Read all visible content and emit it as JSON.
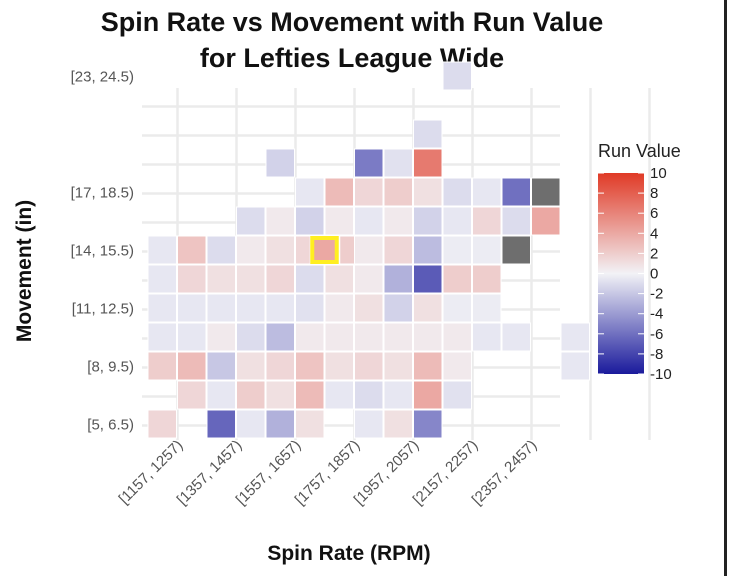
{
  "chart_data": {
    "type": "heatmap",
    "title_lines": [
      "Spin Rate vs Movement with Run Value",
      "for Lefties League Wide"
    ],
    "xlabel": "Spin Rate (RPM)",
    "ylabel": "Movement (in)",
    "x_tick_labels": [
      "[1157, 1257)",
      "[1357, 1457)",
      "[1557, 1657)",
      "[1757, 1857)",
      "[1957, 2057)",
      "[2157, 2257)",
      "[2357, 2457)"
    ],
    "y_tick_labels": [
      "[5, 6.5)",
      "[8, 9.5)",
      "[11, 12.5)",
      "[14, 15.5)",
      "[17, 18.5)",
      "[23, 24.5)"
    ],
    "x_bins": [
      "[1107, 1207)",
      "[1157, 1257)",
      "[1207, 1307)",
      "[1257, 1357)",
      "[1307, 1407)",
      "[1357, 1457)",
      "[1407, 1507)",
      "[1457, 1557)",
      "[1507, 1607)",
      "[1557, 1657)",
      "[1607, 1707)",
      "[1657, 1757)",
      "[1707, 1807)",
      "[1757, 1857)",
      "[1807, 1907)",
      "[1857, 1957)",
      "[1907, 2007)",
      "[1957, 2057)",
      "[2007, 2107)",
      "[2057, 2157)",
      "[2107, 2207)",
      "[2157, 2257)",
      "[2207, 2307)",
      "[2257, 2357)",
      "[2307, 2407)",
      "[2357, 2457)",
      "[2407, 2507)"
    ],
    "y_bins": [
      "[5, 6.5)",
      "[6.5, 8)",
      "[8, 9.5)",
      "[9.5, 11)",
      "[11, 12.5)",
      "[12.5, 14)",
      "[14, 15.5)",
      "[15.5, 17)",
      "[17, 18.5)",
      "[18.5, 20)",
      "[20, 21.5)",
      "[21.5, 23)",
      "[23, 24.5)",
      "[24.5, 26)"
    ],
    "cells": [
      {
        "x": "[1107, 1207)",
        "y": "[5, 6.5)",
        "value": 1.5
      },
      {
        "x": "[1307, 1407)",
        "y": "[5, 6.5)",
        "value": -6.5
      },
      {
        "x": "[1407, 1507)",
        "y": "[5, 6.5)",
        "value": -0.5
      },
      {
        "x": "[1507, 1607)",
        "y": "[5, 6.5)",
        "value": -3
      },
      {
        "x": "[1607, 1707)",
        "y": "[5, 6.5)",
        "value": 1
      },
      {
        "x": "[1807, 1907)",
        "y": "[5, 6.5)",
        "value": -0.5
      },
      {
        "x": "[1907, 2007)",
        "y": "[5, 6.5)",
        "value": 1
      },
      {
        "x": "[2007, 2107)",
        "y": "[5, 6.5)",
        "value": -5
      },
      {
        "x": "[1207, 1307)",
        "y": "[6.5, 8)",
        "value": 1.5
      },
      {
        "x": "[1307, 1407)",
        "y": "[6.5, 8)",
        "value": -0.5
      },
      {
        "x": "[1407, 1507)",
        "y": "[6.5, 8)",
        "value": 2
      },
      {
        "x": "[1507, 1607)",
        "y": "[6.5, 8)",
        "value": 1
      },
      {
        "x": "[1607, 1707)",
        "y": "[6.5, 8)",
        "value": 3
      },
      {
        "x": "[1707, 1807)",
        "y": "[6.5, 8)",
        "value": -0.5
      },
      {
        "x": "[1807, 1907)",
        "y": "[6.5, 8)",
        "value": -1
      },
      {
        "x": "[1907, 2007)",
        "y": "[6.5, 8)",
        "value": -0.5
      },
      {
        "x": "[2007, 2107)",
        "y": "[6.5, 8)",
        "value": 4
      },
      {
        "x": "[2107, 2207)",
        "y": "[6.5, 8)",
        "value": -0.8
      },
      {
        "x": "[1107, 1207)",
        "y": "[8, 9.5)",
        "value": 2
      },
      {
        "x": "[1207, 1307)",
        "y": "[8, 9.5)",
        "value": 3
      },
      {
        "x": "[1307, 1407)",
        "y": "[8, 9.5)",
        "value": -2
      },
      {
        "x": "[1407, 1507)",
        "y": "[8, 9.5)",
        "value": 1
      },
      {
        "x": "[1507, 1607)",
        "y": "[8, 9.5)",
        "value": 1.5
      },
      {
        "x": "[1607, 1707)",
        "y": "[8, 9.5)",
        "value": 2.5
      },
      {
        "x": "[1707, 1807)",
        "y": "[8, 9.5)",
        "value": 1
      },
      {
        "x": "[1807, 1907)",
        "y": "[8, 9.5)",
        "value": 1.5
      },
      {
        "x": "[1907, 2007)",
        "y": "[8, 9.5)",
        "value": 1
      },
      {
        "x": "[2007, 2107)",
        "y": "[8, 9.5)",
        "value": 3
      },
      {
        "x": "[2107, 2207)",
        "y": "[8, 9.5)",
        "value": 0.5
      },
      {
        "x": "[2507, 2607)",
        "y": "[8, 9.5)",
        "value": -0.5
      },
      {
        "x": "[1107, 1207)",
        "y": "[9.5, 11)",
        "value": -0.5
      },
      {
        "x": "[1207, 1307)",
        "y": "[9.5, 11)",
        "value": -0.5
      },
      {
        "x": "[1307, 1407)",
        "y": "[9.5, 11)",
        "value": 0.5
      },
      {
        "x": "[1407, 1507)",
        "y": "[9.5, 11)",
        "value": -1
      },
      {
        "x": "[1507, 1607)",
        "y": "[9.5, 11)",
        "value": -2.5
      },
      {
        "x": "[1607, 1707)",
        "y": "[9.5, 11)",
        "value": 0.5
      },
      {
        "x": "[1707, 1807)",
        "y": "[9.5, 11)",
        "value": 0.5
      },
      {
        "x": "[1807, 1907)",
        "y": "[9.5, 11)",
        "value": 0.5
      },
      {
        "x": "[1907, 2007)",
        "y": "[9.5, 11)",
        "value": 0.5
      },
      {
        "x": "[2007, 2107)",
        "y": "[9.5, 11)",
        "value": 0.5
      },
      {
        "x": "[2107, 2207)",
        "y": "[9.5, 11)",
        "value": 0.5
      },
      {
        "x": "[2207, 2307)",
        "y": "[9.5, 11)",
        "value": -0.5
      },
      {
        "x": "[2307, 2407)",
        "y": "[9.5, 11)",
        "value": -0.5
      },
      {
        "x": "[2507, 2607)",
        "y": "[9.5, 11)",
        "value": -0.5
      },
      {
        "x": "[1107, 1207)",
        "y": "[11, 12.5)",
        "value": -0.5
      },
      {
        "x": "[1207, 1307)",
        "y": "[11, 12.5)",
        "value": -0.5
      },
      {
        "x": "[1307, 1407)",
        "y": "[11, 12.5)",
        "value": -0.5
      },
      {
        "x": "[1407, 1507)",
        "y": "[11, 12.5)",
        "value": -0.5
      },
      {
        "x": "[1507, 1607)",
        "y": "[11, 12.5)",
        "value": -0.5
      },
      {
        "x": "[1607, 1707)",
        "y": "[11, 12.5)",
        "value": -0.8
      },
      {
        "x": "[1707, 1807)",
        "y": "[11, 12.5)",
        "value": 0.5
      },
      {
        "x": "[1807, 1907)",
        "y": "[11, 12.5)",
        "value": 1
      },
      {
        "x": "[1907, 2007)",
        "y": "[11, 12.5)",
        "value": -1.5
      },
      {
        "x": "[2007, 2107)",
        "y": "[11, 12.5)",
        "value": 1
      },
      {
        "x": "[2107, 2207)",
        "y": "[11, 12.5)",
        "value": -0.3
      },
      {
        "x": "[2207, 2307)",
        "y": "[11, 12.5)",
        "value": -0.3
      },
      {
        "x": "[1107, 1207)",
        "y": "[12.5, 14)",
        "value": -0.5
      },
      {
        "x": "[1207, 1307)",
        "y": "[12.5, 14)",
        "value": 1.5
      },
      {
        "x": "[1307, 1407)",
        "y": "[12.5, 14)",
        "value": 1
      },
      {
        "x": "[1407, 1507)",
        "y": "[12.5, 14)",
        "value": 1
      },
      {
        "x": "[1507, 1607)",
        "y": "[12.5, 14)",
        "value": 1.5
      },
      {
        "x": "[1607, 1707)",
        "y": "[12.5, 14)",
        "value": -1
      },
      {
        "x": "[1707, 1807)",
        "y": "[12.5, 14)",
        "value": 1
      },
      {
        "x": "[1807, 1907)",
        "y": "[12.5, 14)",
        "value": 0.5
      },
      {
        "x": "[1907, 2007)",
        "y": "[12.5, 14)",
        "value": -3
      },
      {
        "x": "[2007, 2107)",
        "y": "[12.5, 14)",
        "value": -7
      },
      {
        "x": "[2107, 2207)",
        "y": "[12.5, 14)",
        "value": 2
      },
      {
        "x": "[2207, 2307)",
        "y": "[12.5, 14)",
        "value": 2
      },
      {
        "x": "[1107, 1207)",
        "y": "[14, 15.5)",
        "value": -0.5
      },
      {
        "x": "[1207, 1307)",
        "y": "[14, 15.5)",
        "value": 2.5
      },
      {
        "x": "[1307, 1407)",
        "y": "[14, 15.5)",
        "value": -1
      },
      {
        "x": "[1407, 1507)",
        "y": "[14, 15.5)",
        "value": 0.5
      },
      {
        "x": "[1507, 1607)",
        "y": "[14, 15.5)",
        "value": 1
      },
      {
        "x": "[1607, 1707)",
        "y": "[14, 15.5)",
        "value": 1.5
      },
      {
        "x": "[1657, 1757)",
        "y": "[14, 15.5)",
        "value": 4
      },
      {
        "x": "[1757, 1857)",
        "y": "[14, 15.5)",
        "value": 2
      },
      {
        "x": "[1807, 1907)",
        "y": "[14, 15.5)",
        "value": 0.5
      },
      {
        "x": "[1907, 2007)",
        "y": "[14, 15.5)",
        "value": 1.5
      },
      {
        "x": "[2007, 2107)",
        "y": "[14, 15.5)",
        "value": -2.5
      },
      {
        "x": "[2107, 2207)",
        "y": "[14, 15.5)",
        "value": -0.3
      },
      {
        "x": "[2207, 2307)",
        "y": "[14, 15.5)",
        "value": -0.3
      },
      {
        "x": "[2307, 2407)",
        "y": "[14, 15.5)",
        "value": null
      },
      {
        "x": "[1407, 1507)",
        "y": "[15.5, 17)",
        "value": -1
      },
      {
        "x": "[1507, 1607)",
        "y": "[15.5, 17)",
        "value": 0.5
      },
      {
        "x": "[1607, 1707)",
        "y": "[15.5, 17)",
        "value": -1.5
      },
      {
        "x": "[1707, 1807)",
        "y": "[15.5, 17)",
        "value": 0.5
      },
      {
        "x": "[1807, 1907)",
        "y": "[15.5, 17)",
        "value": -0.5
      },
      {
        "x": "[1907, 2007)",
        "y": "[15.5, 17)",
        "value": 0.5
      },
      {
        "x": "[2007, 2107)",
        "y": "[15.5, 17)",
        "value": -1.5
      },
      {
        "x": "[2107, 2207)",
        "y": "[15.5, 17)",
        "value": -0.5
      },
      {
        "x": "[2207, 2307)",
        "y": "[15.5, 17)",
        "value": 1.5
      },
      {
        "x": "[2307, 2407)",
        "y": "[15.5, 17)",
        "value": -1
      },
      {
        "x": "[2407, 2507)",
        "y": "[15.5, 17)",
        "value": 4
      },
      {
        "x": "[1607, 1707)",
        "y": "[17, 18.5)",
        "value": -0.5
      },
      {
        "x": "[1707, 1807)",
        "y": "[17, 18.5)",
        "value": 3
      },
      {
        "x": "[1807, 1907)",
        "y": "[17, 18.5)",
        "value": 1.5
      },
      {
        "x": "[1907, 2007)",
        "y": "[17, 18.5)",
        "value": 2
      },
      {
        "x": "[2007, 2107)",
        "y": "[17, 18.5)",
        "value": 1
      },
      {
        "x": "[2107, 2207)",
        "y": "[17, 18.5)",
        "value": -1
      },
      {
        "x": "[2207, 2307)",
        "y": "[17, 18.5)",
        "value": -0.5
      },
      {
        "x": "[2307, 2407)",
        "y": "[17, 18.5)",
        "value": -6
      },
      {
        "x": "[2407, 2507)",
        "y": "[17, 18.5)",
        "value": null
      },
      {
        "x": "[1507, 1607)",
        "y": "[18.5, 20)",
        "value": -1.5
      },
      {
        "x": "[1807, 1907)",
        "y": "[18.5, 20)",
        "value": -5.5
      },
      {
        "x": "[1907, 2007)",
        "y": "[18.5, 20)",
        "value": -0.8
      },
      {
        "x": "[2007, 2107)",
        "y": "[18.5, 20)",
        "value": 6.5
      },
      {
        "x": "[2007, 2107)",
        "y": "[20, 21.5)",
        "value": -1
      },
      {
        "x": "[2107, 2207)",
        "y": "[23, 24.5)",
        "value": -1
      }
    ],
    "highlight": {
      "x": "[1657, 1757)",
      "y": "[14, 15.5)"
    },
    "legend": {
      "title": "Run Value",
      "min": -10,
      "max": 10,
      "ticks": [
        "10",
        "8",
        "6",
        "4",
        "2",
        "0",
        "-2",
        "-4",
        "-6",
        "-8",
        "-10"
      ],
      "low_color": "#1a1a9c",
      "mid_color": "#f2f2f6",
      "high_color": "#e03a26",
      "na_color": "#6e6e6e"
    },
    "highlight_color": "#ffee22",
    "grid": true,
    "legend_placement": "right"
  }
}
